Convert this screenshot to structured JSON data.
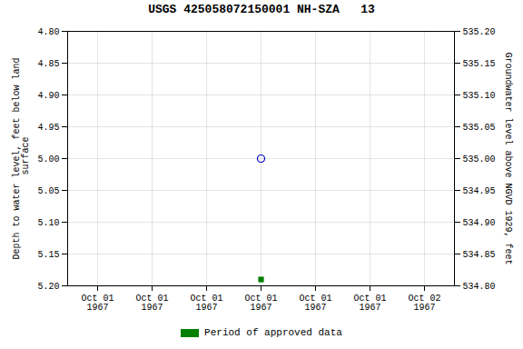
{
  "chart_data": {
    "type": "scatter",
    "title": "USGS 425058072150001 NH-SZA   13",
    "ylabel": "Depth to water level, feet below land\n surface",
    "y2label": "Groundwater level above NGVD 1929, feet",
    "categories": [
      "Oct 01\n1967",
      "Oct 01\n1967",
      "Oct 01\n1967",
      "Oct 01\n1967",
      "Oct 01\n1967",
      "Oct 01\n1967",
      "Oct 02\n1967"
    ],
    "series": [
      {
        "color": "#0000cc",
        "marker": "open_circle",
        "values": [
          null,
          null,
          null,
          5.0,
          null,
          null,
          null
        ]
      },
      {
        "name": "Period of approved data",
        "color": "#008000",
        "marker": "square",
        "values": [
          null,
          null,
          null,
          5.19,
          null,
          null,
          null
        ]
      }
    ],
    "ylim": [
      5.2,
      4.8
    ],
    "yticks": [
      {
        "value": 4.8,
        "label": "4.80"
      },
      4.85,
      {
        "value": 4.9,
        "label": "4.90"
      },
      4.95,
      {
        "value": 5.0,
        "label": "5.00"
      },
      5.05,
      {
        "value": 5.1,
        "label": "5.10"
      },
      5.15,
      {
        "value": 5.2,
        "label": "5.20"
      }
    ],
    "y2lim": [
      534.8,
      535.2
    ],
    "y2ticks": [
      {
        "value": 535.2,
        "label": "535.20"
      },
      535.15,
      {
        "value": 535.1,
        "label": "535.10"
      },
      535.05,
      {
        "value": 535.0,
        "label": "535.00"
      },
      534.95,
      {
        "value": 534.9,
        "label": "534.90"
      },
      534.85,
      {
        "value": 534.8,
        "label": "534.80"
      }
    ],
    "grid": true,
    "legend": "bottom"
  }
}
